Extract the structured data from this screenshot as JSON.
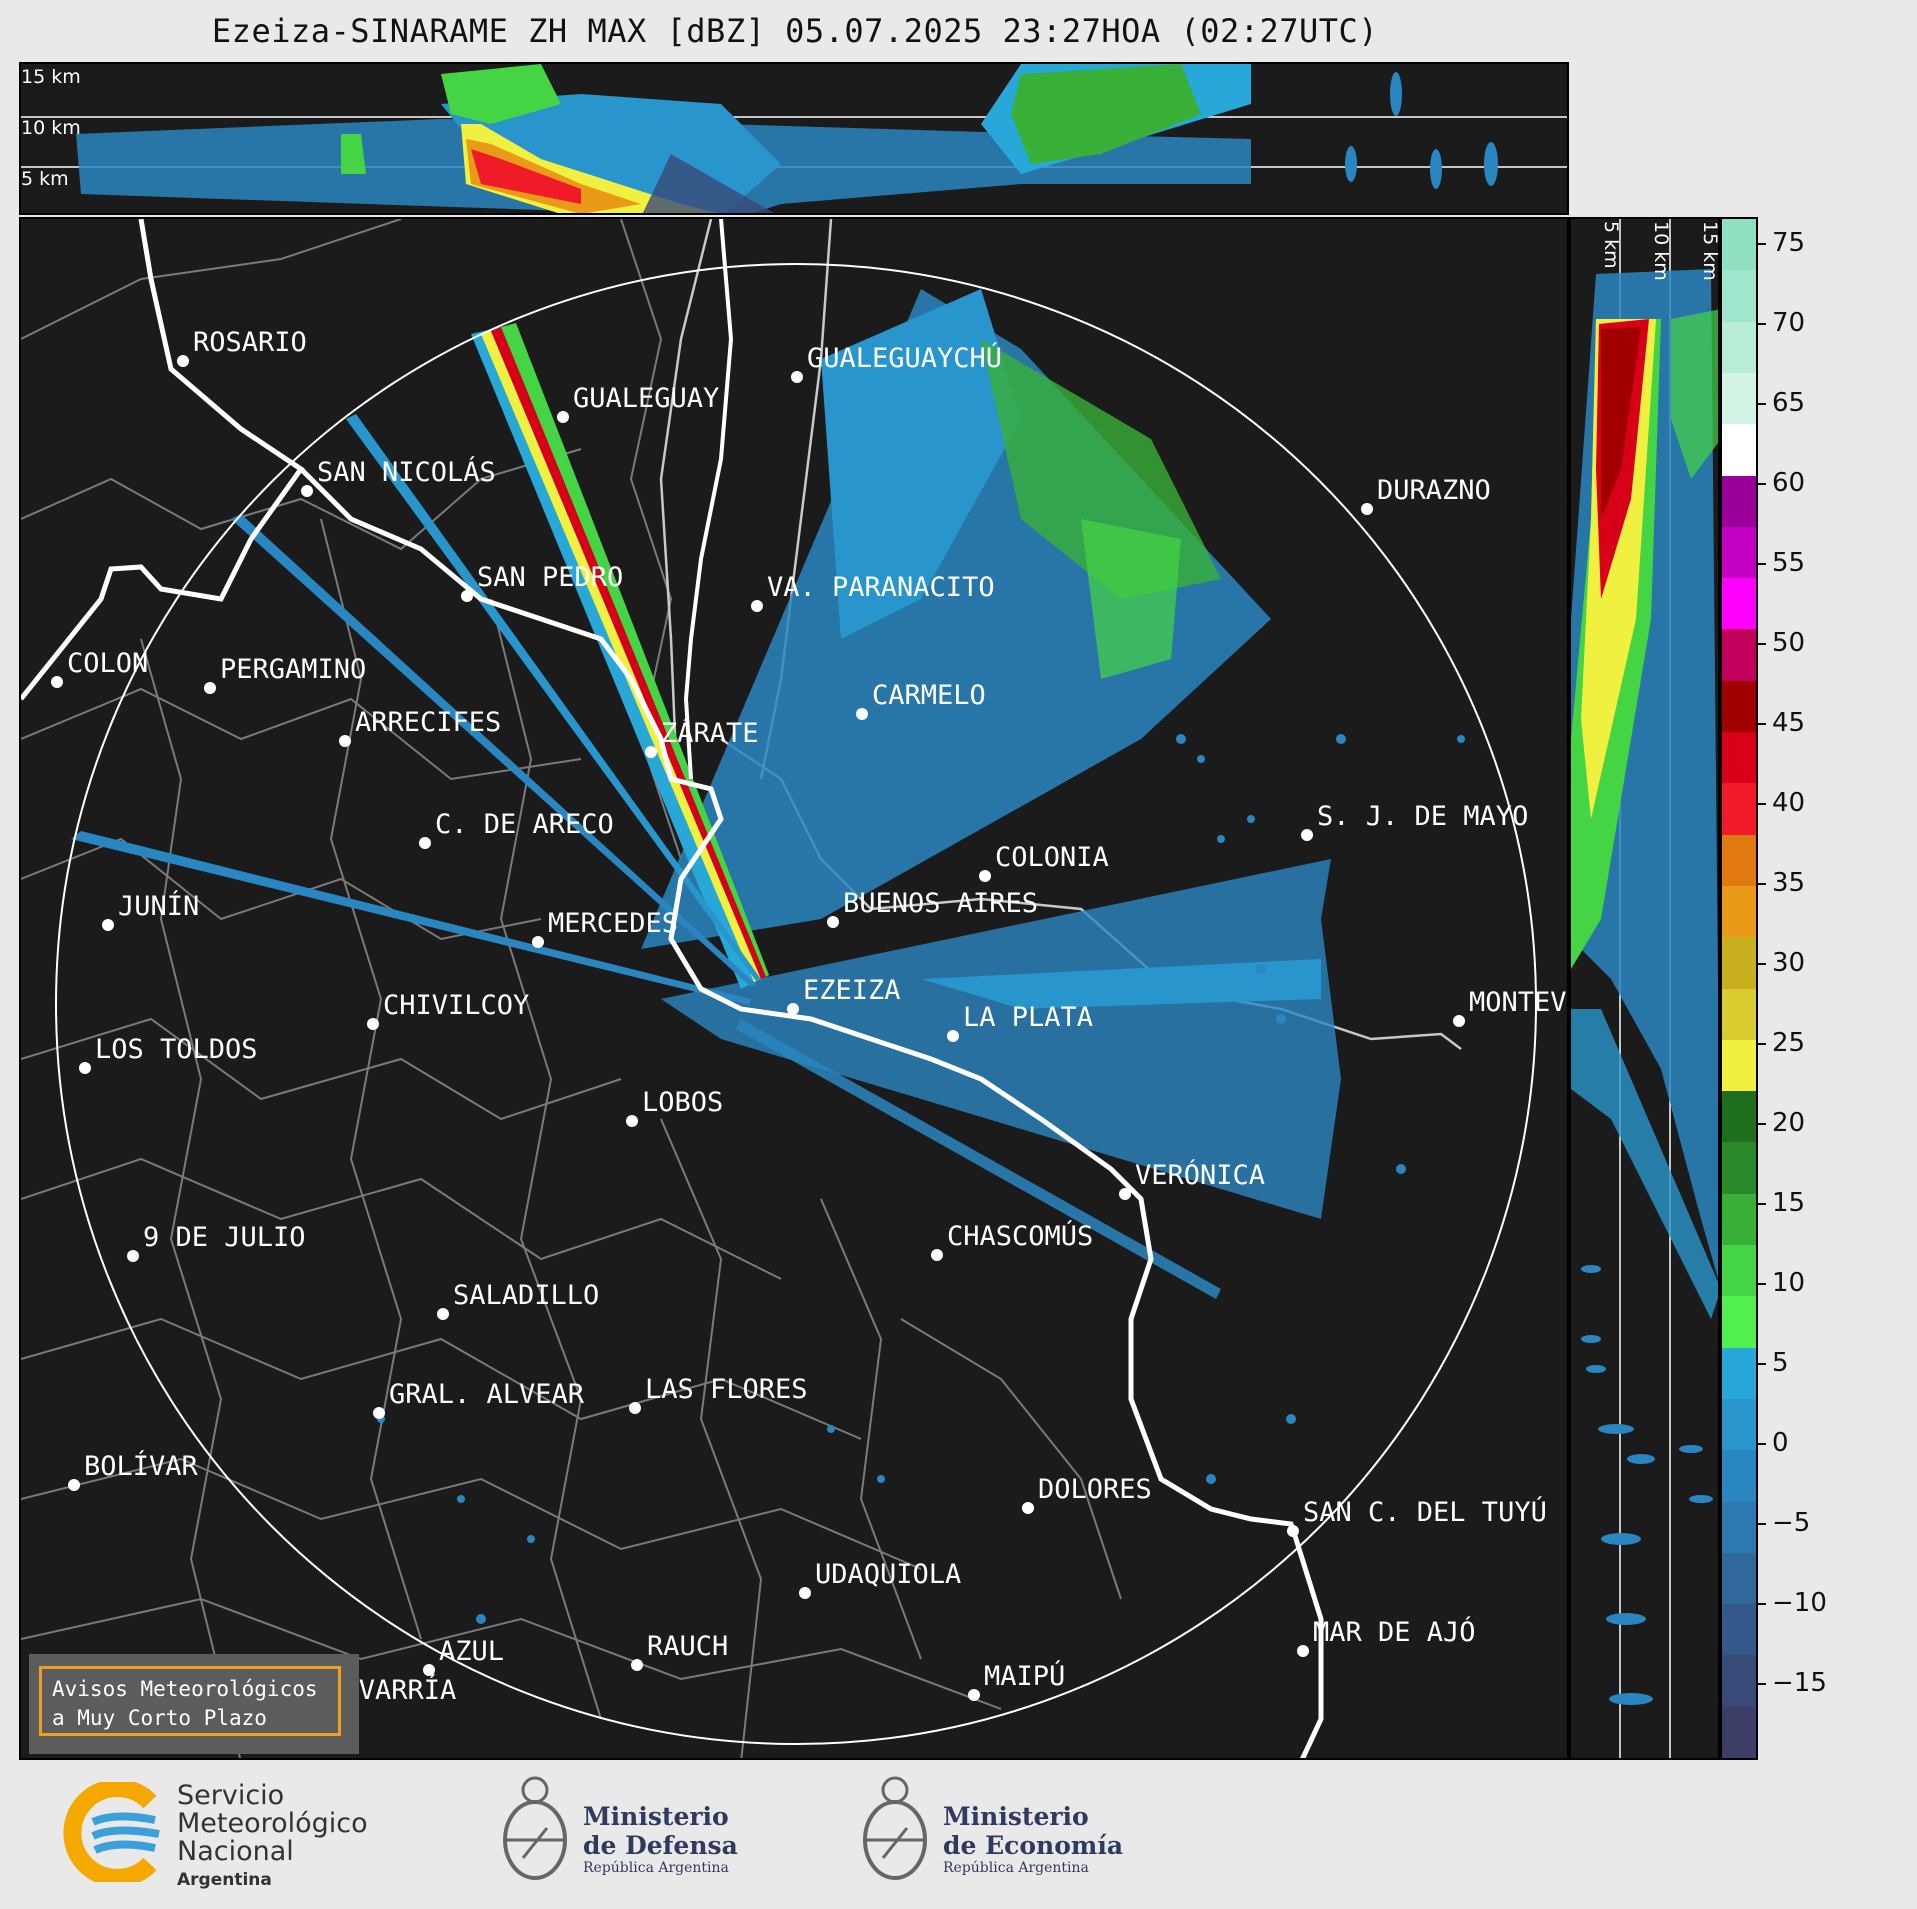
{
  "title": "Ezeiza-SINARAME ZH MAX [dBZ] 05.07.2025 23:27HOA (02:27UTC)",
  "top_altitude_labels": [
    "15 km",
    "10 km",
    "5 km"
  ],
  "side_altitude_labels": [
    "5 km",
    "10 km",
    "15 km"
  ],
  "colorbar": {
    "unit": "dBZ",
    "ticks": [
      "75",
      "70",
      "65",
      "60",
      "55",
      "50",
      "45",
      "40",
      "35",
      "30",
      "25",
      "20",
      "15",
      "10",
      "5",
      "0",
      "−5",
      "−10",
      "−15"
    ],
    "colors": [
      "#8ee0c0",
      "#a0e6cc",
      "#b8eed8",
      "#d4f4e6",
      "#ffffff",
      "#9a0099",
      "#c400c4",
      "#ff00ff",
      "#c0005a",
      "#a00000",
      "#d80018",
      "#f01a28",
      "#e07a10",
      "#e89a18",
      "#c8b020",
      "#d8cc30",
      "#f0f040",
      "#1e6e1e",
      "#2a8a2a",
      "#38b038",
      "#44d444",
      "#50f050",
      "#28a8d8",
      "#2896cc",
      "#2a86c0",
      "#2c78b0",
      "#30689c",
      "#34588a",
      "#384a78",
      "#3c3e68"
    ]
  },
  "cities": [
    {
      "name": "ROSARIO"
    },
    {
      "name": "GUALEGUAYCHÚ"
    },
    {
      "name": "GUALEGUAY"
    },
    {
      "name": "SAN NICOLÁS"
    },
    {
      "name": "DURAZNO"
    },
    {
      "name": "SAN PEDRO"
    },
    {
      "name": "VA. PARANACITO"
    },
    {
      "name": "COLON"
    },
    {
      "name": "PERGAMINO"
    },
    {
      "name": "CARMELO"
    },
    {
      "name": "ARRECIFES"
    },
    {
      "name": "ZÁRATE"
    },
    {
      "name": "S. J. DE MAYO"
    },
    {
      "name": "C. DE ARECO"
    },
    {
      "name": "COLONIA"
    },
    {
      "name": "JUNÍN"
    },
    {
      "name": "MERCEDES"
    },
    {
      "name": "BUENOS AIRES"
    },
    {
      "name": "EZEIZA"
    },
    {
      "name": "MONTEV"
    },
    {
      "name": "CHIVILCOY"
    },
    {
      "name": "LA PLATA"
    },
    {
      "name": "LOS TOLDOS"
    },
    {
      "name": "LOBOS"
    },
    {
      "name": "VERÓNICA"
    },
    {
      "name": "9 DE JULIO"
    },
    {
      "name": "CHASCOMÚS"
    },
    {
      "name": "SALADILLO"
    },
    {
      "name": "GRAL. ALVEAR"
    },
    {
      "name": "LAS FLORES"
    },
    {
      "name": "BOLÍVAR"
    },
    {
      "name": "DOLORES"
    },
    {
      "name": "SAN C. DEL TUYÚ"
    },
    {
      "name": "UDAQUIOLA"
    },
    {
      "name": "MAR DE AJÓ"
    },
    {
      "name": "AZUL"
    },
    {
      "name": "RAUCH"
    },
    {
      "name": "MAIPÚ"
    },
    {
      "name": "OLAVARRÍA"
    }
  ],
  "notice": {
    "line1": "Avisos Meteorológicos",
    "line2": "a Muy Corto Plazo"
  },
  "logos": {
    "smn": {
      "line1": "Servicio",
      "line2": "Meteorológico",
      "line3": "Nacional",
      "line4": "Argentina"
    },
    "defensa": {
      "line1": "Ministerio",
      "line2": "de Defensa",
      "line3": "República Argentina"
    },
    "economia": {
      "line1": "Ministerio",
      "line2": "de Economía",
      "line3": "República Argentina"
    }
  }
}
